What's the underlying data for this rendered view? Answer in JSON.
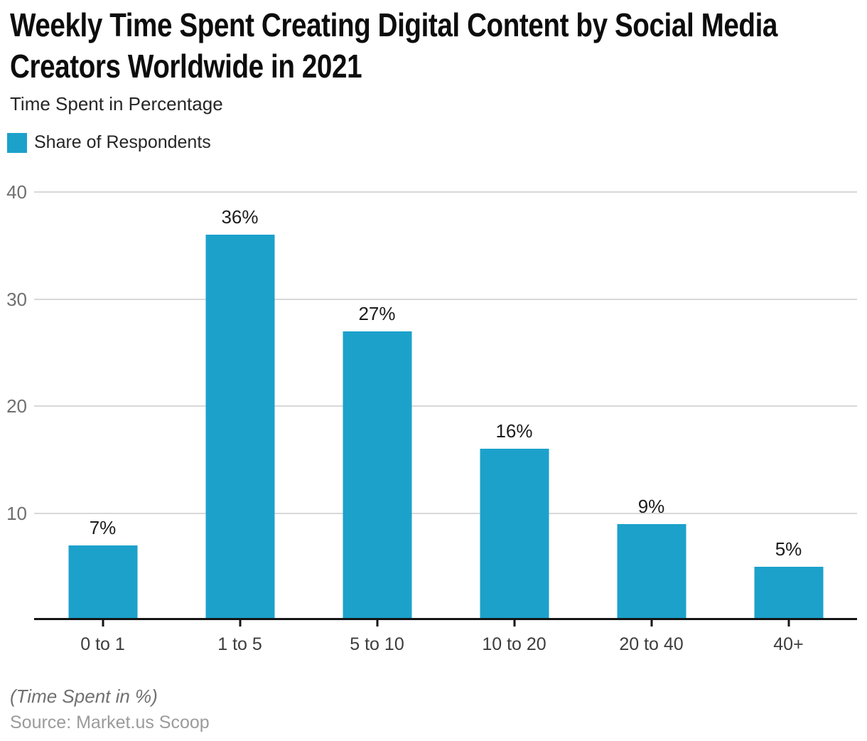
{
  "chart_data": {
    "type": "bar",
    "title": "Weekly Time Spent Creating Digital Content by Social Media Creators Worldwide in 2021",
    "subtitle": "Time Spent in Percentage",
    "legend": "Share of Respondents",
    "legend_position": "top-left",
    "categories": [
      "0 to 1",
      "1 to 5",
      "5 to 10",
      "10 to 20",
      "20 to 40",
      "40+"
    ],
    "values": [
      7,
      36,
      27,
      16,
      9,
      5
    ],
    "value_labels": [
      "7%",
      "36%",
      "27%",
      "16%",
      "9%",
      "5%"
    ],
    "xlabel": "",
    "ylabel": "",
    "ylim": [
      0,
      40
    ],
    "yticks": [
      10,
      20,
      30,
      40
    ],
    "grid": "horizontal",
    "bar_color": "#1CA1CB",
    "gridline_color": "#d8d8d8",
    "axis_color": "#151515",
    "footnote": "(Time Spent in %)",
    "source": "Source: Market.us Scoop"
  }
}
